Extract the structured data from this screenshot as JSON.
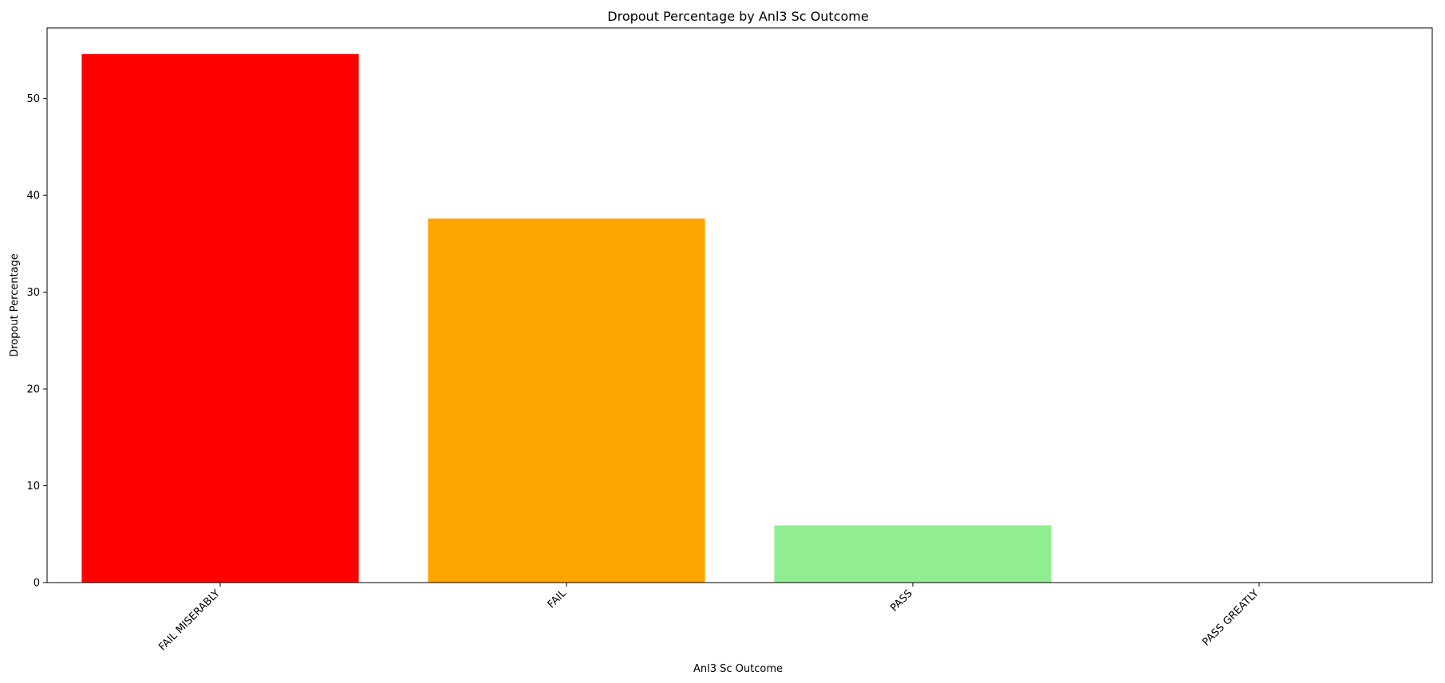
{
  "chart_data": {
    "type": "bar",
    "title": "Dropout Percentage by Anl3 Sc Outcome",
    "xlabel": "Anl3 Sc Outcome",
    "ylabel": "Dropout Percentage",
    "categories": [
      "FAIL MISERABLY",
      "FAIL",
      "PASS",
      "PASS GREATLY"
    ],
    "values": [
      54.6,
      37.6,
      5.9,
      0
    ],
    "colors": [
      "#ff0000",
      "#ffa500",
      "#90ee90",
      "#1f77b4"
    ],
    "ylim": [
      0,
      57.3
    ],
    "yticks": [
      0,
      10,
      20,
      30,
      40,
      50
    ],
    "grid": false,
    "legend": "none"
  }
}
